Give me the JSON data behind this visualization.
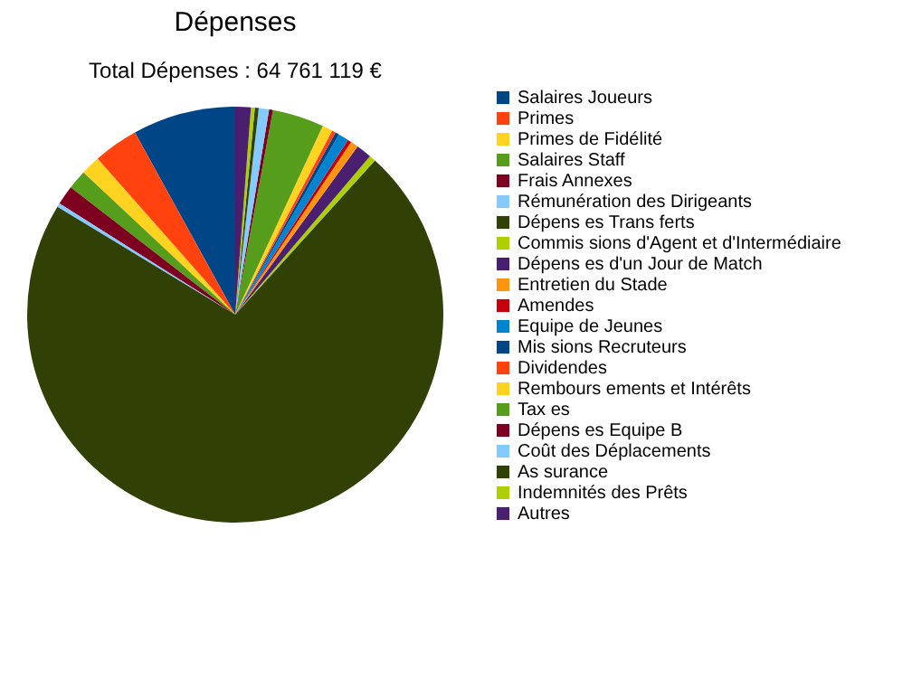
{
  "chart_data": {
    "type": "pie",
    "title": "Dépenses",
    "subtitle": "Total Dépenses : 64 761 119 €",
    "categories": [
      "Salaires Joueurs",
      "Primes",
      "Primes de Fidélité",
      "Salaires Staff",
      "Frais Annexes",
      "Rémunération des Dirigeants",
      "Dépens es Trans ferts",
      "Commis sions d'Agent et d'Intermédiaire",
      "Dépens es d'un Jour de Match",
      "Entretien du Stade",
      "Amendes",
      "Equipe de Jeunes",
      "Mis sions Recruteurs",
      "Dividendes",
      "Rembours ements et Intérêts",
      "Tax es",
      "Dépens es Equipe B",
      "Coût des Déplacements",
      "As surance",
      "Indemnités des Prêts",
      "Autres"
    ],
    "values": [
      8,
      3.5,
      1.5,
      1.5,
      1.5,
      0.3,
      71.9,
      0.5,
      1.2,
      0.6,
      0.3,
      0.8,
      0.3,
      0.3,
      0.8,
      4,
      0.3,
      0.8,
      0.3,
      0.3,
      1.2
    ],
    "colors": [
      "#004586",
      "#ff420e",
      "#ffd320",
      "#579d1c",
      "#7e0021",
      "#83caff",
      "#314004",
      "#aecf00",
      "#4b1f6f",
      "#ff950e",
      "#c5000b",
      "#0084d1",
      "#004586",
      "#ff420e",
      "#ffd320",
      "#579d1c",
      "#7e0021",
      "#83caff",
      "#314004",
      "#aecf00",
      "#4b1f6f"
    ],
    "legend": "right"
  }
}
